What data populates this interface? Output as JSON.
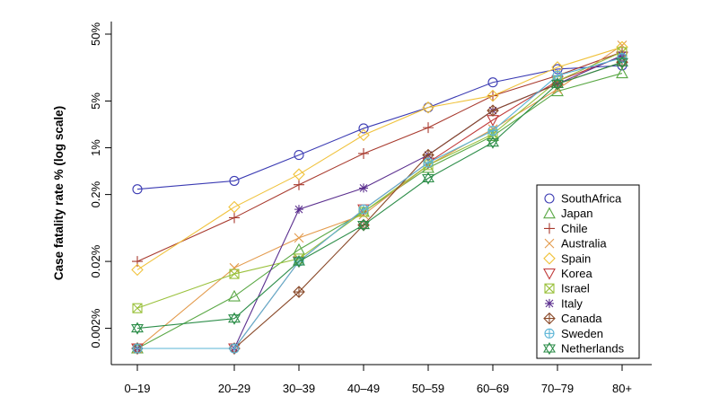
{
  "chart_data": {
    "type": "line",
    "title": "",
    "xlabel": "",
    "ylabel": "Case fatality rate % (log scale)",
    "y_scale": "log",
    "ylim": [
      0.00085,
      90
    ],
    "categories": [
      "0–19",
      "20–29",
      "30–39",
      "40–49",
      "50–59",
      "60–69",
      "70–79",
      "80+"
    ],
    "x_positions": [
      0,
      15,
      25,
      35,
      45,
      55,
      65,
      75
    ],
    "y_ticks": [
      {
        "value": 50,
        "label": "50%"
      },
      {
        "value": 5,
        "label": "5%"
      },
      {
        "value": 1,
        "label": "1%"
      },
      {
        "value": 0.2,
        "label": "0.2%"
      },
      {
        "value": 0.02,
        "label": "0.02%"
      },
      {
        "value": 0.002,
        "label": "0.002%"
      }
    ],
    "legend": {
      "position": "bottom-right"
    },
    "series": [
      {
        "name": "SouthAfrica",
        "color": "#3b3bb3",
        "marker": "circle",
        "values": [
          0.24,
          0.32,
          0.78,
          1.95,
          4.0,
          9.5,
          15,
          17
        ]
      },
      {
        "name": "Japan",
        "color": "#5aa845",
        "marker": "triangle-up",
        "values": [
          0.001,
          0.006,
          0.03,
          0.11,
          0.5,
          1.5,
          7,
          13
        ]
      },
      {
        "name": "Chile",
        "color": "#a83a2e",
        "marker": "plus",
        "values": [
          0.02,
          0.09,
          0.28,
          0.82,
          2.0,
          6.0,
          12,
          27
        ]
      },
      {
        "name": "Australia",
        "color": "#e39a4b",
        "marker": "cross",
        "values": [
          0.001,
          0.016,
          0.045,
          0.1,
          0.55,
          1.9,
          7.5,
          34
        ]
      },
      {
        "name": "Spain",
        "color": "#f0c23c",
        "marker": "diamond",
        "values": [
          0.015,
          0.13,
          0.4,
          1.55,
          4.0,
          6.0,
          16,
          32
        ]
      },
      {
        "name": "Korea",
        "color": "#c03a3a",
        "marker": "triangle-down",
        "values": [
          0.001,
          0.001,
          0.02,
          0.12,
          0.6,
          2.6,
          10,
          23
        ]
      },
      {
        "name": "Israel",
        "color": "#9ac13c",
        "marker": "box-x",
        "values": [
          0.004,
          0.013,
          0.022,
          0.11,
          0.55,
          1.6,
          10,
          27
        ]
      },
      {
        "name": "Italy",
        "color": "#5a2e8e",
        "marker": "star",
        "values": [
          0.001,
          0.001,
          0.12,
          0.25,
          0.78,
          3.6,
          9,
          24
        ]
      },
      {
        "name": "Canada",
        "color": "#8a4a2a",
        "marker": "circle-plus",
        "values": [
          0.001,
          0.001,
          0.007,
          0.07,
          0.78,
          3.6,
          9,
          19
        ]
      },
      {
        "name": "Sweden",
        "color": "#5ab4d6",
        "marker": "circle-x",
        "values": [
          0.001,
          0.001,
          0.02,
          0.12,
          0.6,
          1.8,
          12,
          22
        ]
      },
      {
        "name": "Netherlands",
        "color": "#2e8e4a",
        "marker": "hexagram",
        "values": [
          0.002,
          0.0028,
          0.02,
          0.07,
          0.35,
          1.2,
          9,
          19
        ]
      }
    ]
  }
}
